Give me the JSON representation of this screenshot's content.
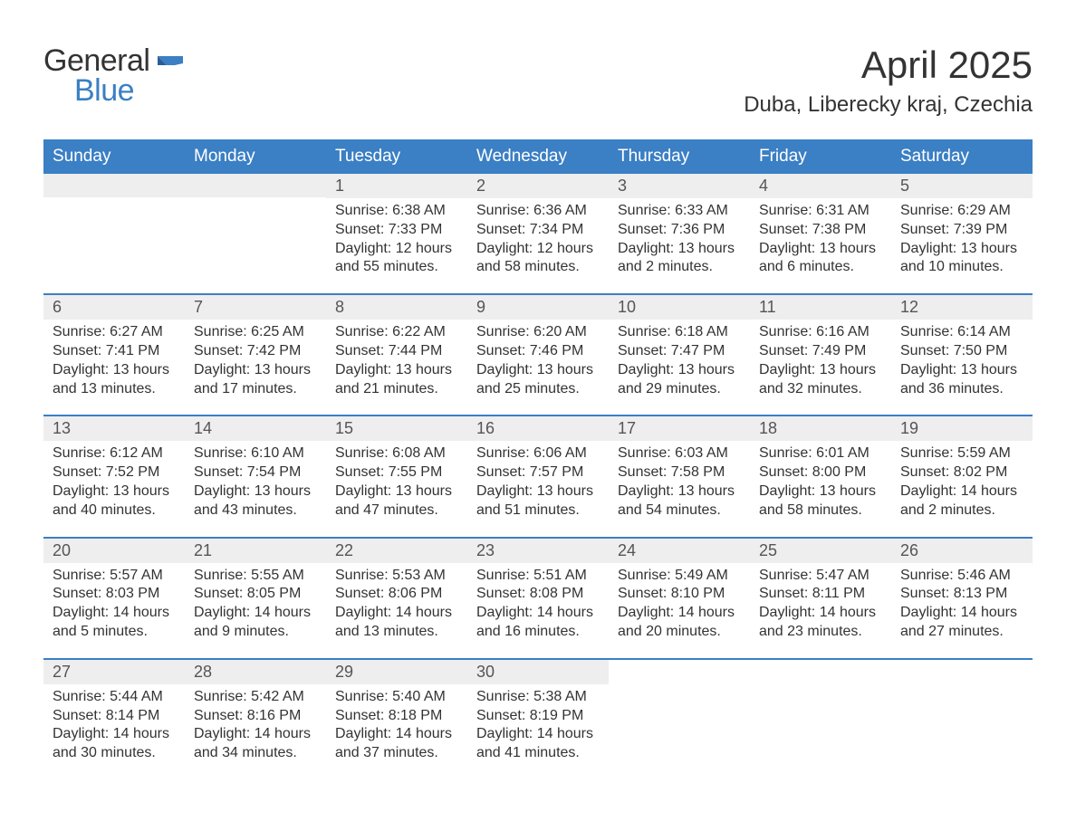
{
  "logo": {
    "general": "General",
    "blue": "Blue"
  },
  "title": "April 2025",
  "location": "Duba, Liberecky kraj, Czechia",
  "colors": {
    "header_bg": "#3b7fc4",
    "header_text": "#ffffff",
    "daynum_bg": "#eeeeee",
    "week_border": "#3b7fc4",
    "text": "#333333",
    "logo_blue": "#3b7fc4",
    "page_bg": "#ffffff"
  },
  "daysOfWeek": [
    "Sunday",
    "Monday",
    "Tuesday",
    "Wednesday",
    "Thursday",
    "Friday",
    "Saturday"
  ],
  "weeks": [
    [
      {
        "day": "",
        "sunrise": "",
        "sunset": "",
        "daylight": ""
      },
      {
        "day": "",
        "sunrise": "",
        "sunset": "",
        "daylight": ""
      },
      {
        "day": "1",
        "sunrise": "Sunrise: 6:38 AM",
        "sunset": "Sunset: 7:33 PM",
        "daylight": "Daylight: 12 hours and 55 minutes."
      },
      {
        "day": "2",
        "sunrise": "Sunrise: 6:36 AM",
        "sunset": "Sunset: 7:34 PM",
        "daylight": "Daylight: 12 hours and 58 minutes."
      },
      {
        "day": "3",
        "sunrise": "Sunrise: 6:33 AM",
        "sunset": "Sunset: 7:36 PM",
        "daylight": "Daylight: 13 hours and 2 minutes."
      },
      {
        "day": "4",
        "sunrise": "Sunrise: 6:31 AM",
        "sunset": "Sunset: 7:38 PM",
        "daylight": "Daylight: 13 hours and 6 minutes."
      },
      {
        "day": "5",
        "sunrise": "Sunrise: 6:29 AM",
        "sunset": "Sunset: 7:39 PM",
        "daylight": "Daylight: 13 hours and 10 minutes."
      }
    ],
    [
      {
        "day": "6",
        "sunrise": "Sunrise: 6:27 AM",
        "sunset": "Sunset: 7:41 PM",
        "daylight": "Daylight: 13 hours and 13 minutes."
      },
      {
        "day": "7",
        "sunrise": "Sunrise: 6:25 AM",
        "sunset": "Sunset: 7:42 PM",
        "daylight": "Daylight: 13 hours and 17 minutes."
      },
      {
        "day": "8",
        "sunrise": "Sunrise: 6:22 AM",
        "sunset": "Sunset: 7:44 PM",
        "daylight": "Daylight: 13 hours and 21 minutes."
      },
      {
        "day": "9",
        "sunrise": "Sunrise: 6:20 AM",
        "sunset": "Sunset: 7:46 PM",
        "daylight": "Daylight: 13 hours and 25 minutes."
      },
      {
        "day": "10",
        "sunrise": "Sunrise: 6:18 AM",
        "sunset": "Sunset: 7:47 PM",
        "daylight": "Daylight: 13 hours and 29 minutes."
      },
      {
        "day": "11",
        "sunrise": "Sunrise: 6:16 AM",
        "sunset": "Sunset: 7:49 PM",
        "daylight": "Daylight: 13 hours and 32 minutes."
      },
      {
        "day": "12",
        "sunrise": "Sunrise: 6:14 AM",
        "sunset": "Sunset: 7:50 PM",
        "daylight": "Daylight: 13 hours and 36 minutes."
      }
    ],
    [
      {
        "day": "13",
        "sunrise": "Sunrise: 6:12 AM",
        "sunset": "Sunset: 7:52 PM",
        "daylight": "Daylight: 13 hours and 40 minutes."
      },
      {
        "day": "14",
        "sunrise": "Sunrise: 6:10 AM",
        "sunset": "Sunset: 7:54 PM",
        "daylight": "Daylight: 13 hours and 43 minutes."
      },
      {
        "day": "15",
        "sunrise": "Sunrise: 6:08 AM",
        "sunset": "Sunset: 7:55 PM",
        "daylight": "Daylight: 13 hours and 47 minutes."
      },
      {
        "day": "16",
        "sunrise": "Sunrise: 6:06 AM",
        "sunset": "Sunset: 7:57 PM",
        "daylight": "Daylight: 13 hours and 51 minutes."
      },
      {
        "day": "17",
        "sunrise": "Sunrise: 6:03 AM",
        "sunset": "Sunset: 7:58 PM",
        "daylight": "Daylight: 13 hours and 54 minutes."
      },
      {
        "day": "18",
        "sunrise": "Sunrise: 6:01 AM",
        "sunset": "Sunset: 8:00 PM",
        "daylight": "Daylight: 13 hours and 58 minutes."
      },
      {
        "day": "19",
        "sunrise": "Sunrise: 5:59 AM",
        "sunset": "Sunset: 8:02 PM",
        "daylight": "Daylight: 14 hours and 2 minutes."
      }
    ],
    [
      {
        "day": "20",
        "sunrise": "Sunrise: 5:57 AM",
        "sunset": "Sunset: 8:03 PM",
        "daylight": "Daylight: 14 hours and 5 minutes."
      },
      {
        "day": "21",
        "sunrise": "Sunrise: 5:55 AM",
        "sunset": "Sunset: 8:05 PM",
        "daylight": "Daylight: 14 hours and 9 minutes."
      },
      {
        "day": "22",
        "sunrise": "Sunrise: 5:53 AM",
        "sunset": "Sunset: 8:06 PM",
        "daylight": "Daylight: 14 hours and 13 minutes."
      },
      {
        "day": "23",
        "sunrise": "Sunrise: 5:51 AM",
        "sunset": "Sunset: 8:08 PM",
        "daylight": "Daylight: 14 hours and 16 minutes."
      },
      {
        "day": "24",
        "sunrise": "Sunrise: 5:49 AM",
        "sunset": "Sunset: 8:10 PM",
        "daylight": "Daylight: 14 hours and 20 minutes."
      },
      {
        "day": "25",
        "sunrise": "Sunrise: 5:47 AM",
        "sunset": "Sunset: 8:11 PM",
        "daylight": "Daylight: 14 hours and 23 minutes."
      },
      {
        "day": "26",
        "sunrise": "Sunrise: 5:46 AM",
        "sunset": "Sunset: 8:13 PM",
        "daylight": "Daylight: 14 hours and 27 minutes."
      }
    ],
    [
      {
        "day": "27",
        "sunrise": "Sunrise: 5:44 AM",
        "sunset": "Sunset: 8:14 PM",
        "daylight": "Daylight: 14 hours and 30 minutes."
      },
      {
        "day": "28",
        "sunrise": "Sunrise: 5:42 AM",
        "sunset": "Sunset: 8:16 PM",
        "daylight": "Daylight: 14 hours and 34 minutes."
      },
      {
        "day": "29",
        "sunrise": "Sunrise: 5:40 AM",
        "sunset": "Sunset: 8:18 PM",
        "daylight": "Daylight: 14 hours and 37 minutes."
      },
      {
        "day": "30",
        "sunrise": "Sunrise: 5:38 AM",
        "sunset": "Sunset: 8:19 PM",
        "daylight": "Daylight: 14 hours and 41 minutes."
      },
      {
        "day": "",
        "sunrise": "",
        "sunset": "",
        "daylight": ""
      },
      {
        "day": "",
        "sunrise": "",
        "sunset": "",
        "daylight": ""
      },
      {
        "day": "",
        "sunrise": "",
        "sunset": "",
        "daylight": ""
      }
    ]
  ]
}
